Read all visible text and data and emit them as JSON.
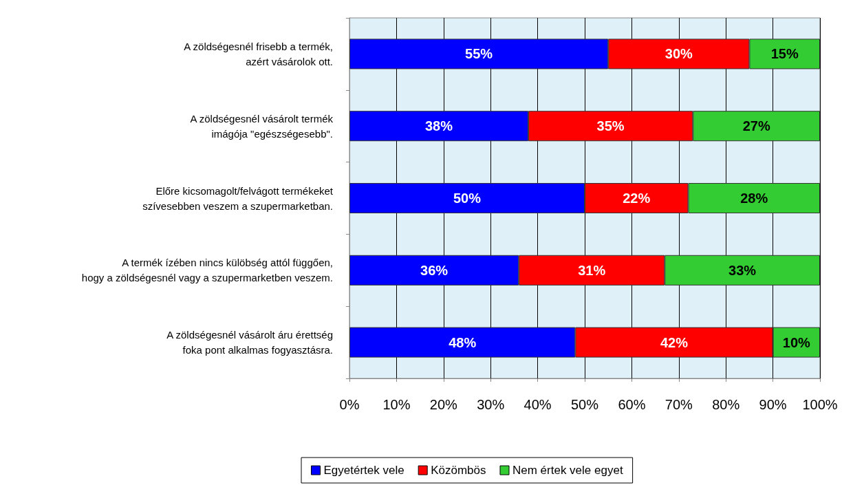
{
  "chart_data": {
    "type": "bar",
    "orientation": "horizontal",
    "stacked": true,
    "categories": [
      "A zöldségesnél frisebb a termék,\nazért vásárolok ott.",
      "A zöldségesnél vásárolt termék\nimágója \"egészségesebb\".",
      "Előre kicsomagolt/felvágott termékeket\nszívesebben veszem a szupermarketban.",
      "A termék ízében nincs külöbség attól függően,\nhogy a zöldségesnél vagy a szupermarketben veszem.",
      "A zöldségesnél vásárolt áru érettség\nfoka pont alkalmas fogyasztásra."
    ],
    "series": [
      {
        "name": "Egyetértek vele",
        "color": "#0000ff",
        "values": [
          55,
          38,
          50,
          36,
          48
        ],
        "value_labels": [
          "55%",
          "38%",
          "50%",
          "36%",
          "48%"
        ]
      },
      {
        "name": "Közömbös",
        "color": "#ff0000",
        "values": [
          30,
          35,
          22,
          31,
          42
        ],
        "value_labels": [
          "30%",
          "35%",
          "22%",
          "31%",
          "42%"
        ]
      },
      {
        "name": "Nem értek vele egyet",
        "color": "#33cc33",
        "values": [
          15,
          27,
          28,
          33,
          10
        ],
        "value_labels": [
          "15%",
          "27%",
          "28%",
          "33%",
          "10%"
        ]
      }
    ],
    "xlim": [
      0,
      100
    ],
    "xticks": [
      {
        "value": 0,
        "label": "0%"
      },
      {
        "value": 10,
        "label": "10%"
      },
      {
        "value": 20,
        "label": "20%"
      },
      {
        "value": 30,
        "label": "30%"
      },
      {
        "value": 40,
        "label": "40%"
      },
      {
        "value": 50,
        "label": "50%"
      },
      {
        "value": 60,
        "label": "60%"
      },
      {
        "value": 70,
        "label": "70%"
      },
      {
        "value": 80,
        "label": "80%"
      },
      {
        "value": 90,
        "label": "90%"
      },
      {
        "value": 100,
        "label": "100%"
      }
    ],
    "grid": "x",
    "legend": "bottom"
  }
}
